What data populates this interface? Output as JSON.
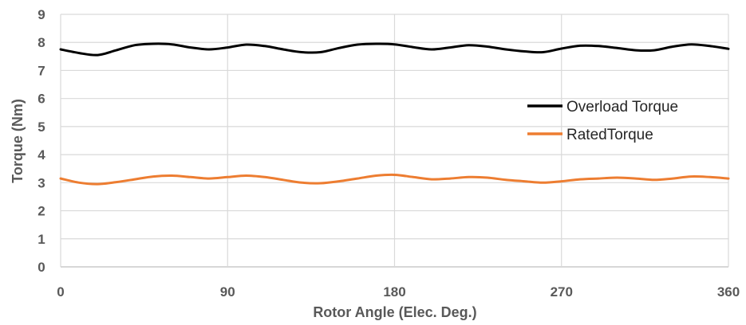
{
  "chart_data": {
    "type": "line",
    "title": "",
    "xlabel": "Rotor Angle (Elec. Deg.)",
    "ylabel": "Torque (Nm)",
    "xlim": [
      0,
      360
    ],
    "ylim": [
      0,
      9
    ],
    "xticks": [
      "0",
      "90",
      "180",
      "270",
      "360"
    ],
    "yticks": [
      "0",
      "1",
      "2",
      "3",
      "4",
      "5",
      "6",
      "7",
      "8",
      "9"
    ],
    "grid": true,
    "legend_position": "right",
    "series": [
      {
        "name": "Overload Torque",
        "color": "#000000",
        "x": [
          0,
          10,
          20,
          30,
          40,
          50,
          60,
          70,
          80,
          90,
          100,
          110,
          120,
          130,
          140,
          150,
          160,
          170,
          180,
          190,
          200,
          210,
          220,
          230,
          240,
          250,
          260,
          270,
          280,
          290,
          300,
          310,
          320,
          330,
          340,
          350,
          360
        ],
        "y": [
          7.75,
          7.62,
          7.55,
          7.72,
          7.9,
          7.95,
          7.93,
          7.82,
          7.75,
          7.82,
          7.92,
          7.87,
          7.75,
          7.65,
          7.65,
          7.8,
          7.92,
          7.95,
          7.93,
          7.83,
          7.75,
          7.82,
          7.9,
          7.85,
          7.75,
          7.68,
          7.65,
          7.78,
          7.88,
          7.87,
          7.8,
          7.72,
          7.72,
          7.85,
          7.93,
          7.87,
          7.77
        ]
      },
      {
        "name": "RatedTorque",
        "color": "#ed7d31",
        "x": [
          0,
          10,
          20,
          30,
          40,
          50,
          60,
          70,
          80,
          90,
          100,
          110,
          120,
          130,
          140,
          150,
          160,
          170,
          180,
          190,
          200,
          210,
          220,
          230,
          240,
          250,
          260,
          270,
          280,
          290,
          300,
          310,
          320,
          330,
          340,
          350,
          360
        ],
        "y": [
          3.15,
          3.0,
          2.95,
          3.02,
          3.12,
          3.22,
          3.25,
          3.2,
          3.15,
          3.2,
          3.25,
          3.2,
          3.1,
          3.0,
          2.98,
          3.05,
          3.15,
          3.25,
          3.28,
          3.2,
          3.12,
          3.15,
          3.2,
          3.18,
          3.1,
          3.05,
          3.0,
          3.05,
          3.12,
          3.15,
          3.18,
          3.15,
          3.1,
          3.15,
          3.22,
          3.2,
          3.15
        ]
      }
    ]
  }
}
